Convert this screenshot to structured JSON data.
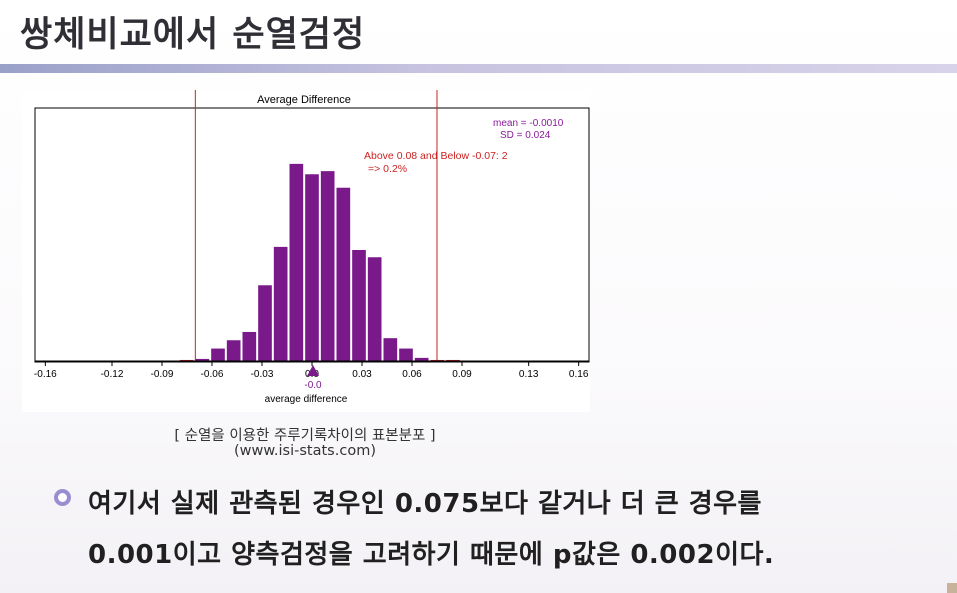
{
  "slide": {
    "title": "쌍체비교에서 순열검정"
  },
  "figure": {
    "caption_line1": "[ 순열을 이용한 주루기록차이의 표본분포 ]",
    "caption_line2": "(www.isi-stats.com)"
  },
  "chart_data": {
    "type": "bar",
    "title": "Average Difference",
    "xlabel": "average difference",
    "xlim": [
      -0.165,
      0.165
    ],
    "ylim": [
      0,
      240
    ],
    "x_ticks": [
      "-0.16",
      "-0.12",
      "-0.09",
      "-0.06",
      "-0.03",
      "0.0",
      "0.03",
      "0.06",
      "0.09",
      "0.13",
      "0.16"
    ],
    "x_tick_values": [
      -0.16,
      -0.12,
      -0.09,
      -0.06,
      -0.03,
      0.0,
      0.03,
      0.06,
      0.09,
      0.13,
      0.16
    ],
    "bin_width": 0.0094,
    "bin_centers": [
      -0.0752,
      -0.0658,
      -0.0564,
      -0.047,
      -0.0376,
      -0.0282,
      -0.0188,
      -0.0094,
      0.0,
      0.0094,
      0.0188,
      0.0282,
      0.0376,
      0.047,
      0.0564,
      0.0658,
      0.0752,
      0.0846
    ],
    "counts": [
      1,
      2,
      12,
      20,
      28,
      73,
      110,
      190,
      180,
      183,
      167,
      107,
      100,
      22,
      12,
      3,
      1,
      1
    ],
    "bar_color": "#7a1a8a",
    "tail_color": "#cc2222",
    "cutoffs": [
      -0.07,
      0.075
    ],
    "cutoff_color": "#cc2222",
    "marker_value": -0.0,
    "marker_label": "-0.0",
    "annotations": {
      "mean": "mean = -0.0010",
      "sd": "SD = 0.024",
      "tail_line1": "Above  0.08 and Below -0.07: 2",
      "tail_line2": "=> 0.2%"
    }
  },
  "bullet": {
    "line1": "여기서 실제 관측된 경우인 0.075보다 같거나 더 큰 경우를",
    "line2": "0.001이고 양측검정을 고려하기 때문에 p값은 0.002이다."
  },
  "colors": {
    "title_bar": "#aaa6d4",
    "bullet_ring": "#9b8ed0",
    "annotation_stats": "#8a1a9a",
    "annotation_tail": "#cc2222"
  }
}
